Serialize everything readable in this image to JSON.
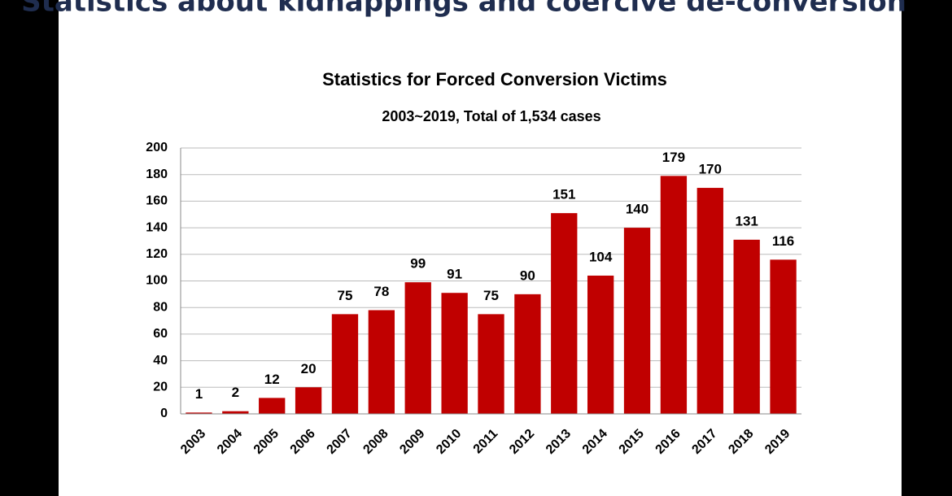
{
  "slide": {
    "heading": "Statistics about kidnappings and coercive de-conversion"
  },
  "chart_data": {
    "type": "bar",
    "title": "Statistics for Forced Conversion Victims",
    "subtitle": "2003~2019, Total of 1,534 cases",
    "categories": [
      "2003",
      "2004",
      "2005",
      "2006",
      "2007",
      "2008",
      "2009",
      "2010",
      "2011",
      "2012",
      "2013",
      "2014",
      "2015",
      "2016",
      "2017",
      "2018",
      "2019"
    ],
    "values": [
      1,
      2,
      12,
      20,
      75,
      78,
      99,
      91,
      75,
      90,
      151,
      104,
      140,
      179,
      170,
      131,
      116
    ],
    "color": "#c00000",
    "ylim": [
      0,
      200
    ],
    "yticks": [
      0,
      20,
      40,
      60,
      80,
      100,
      120,
      140,
      160,
      180,
      200
    ],
    "grid": true
  }
}
